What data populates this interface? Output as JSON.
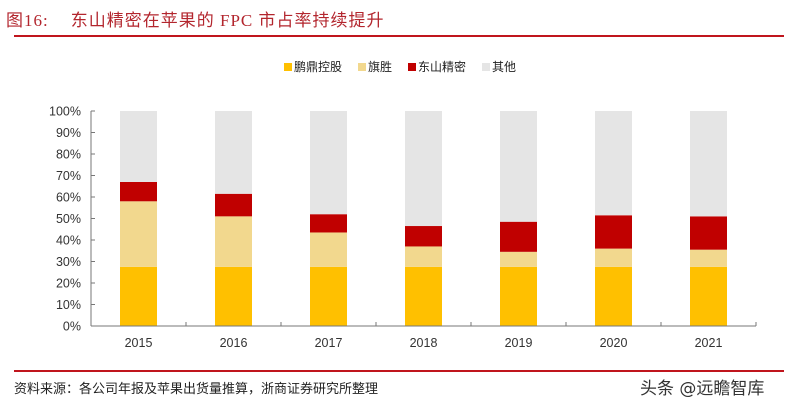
{
  "figure": {
    "label": "图16:",
    "title": "东山精密在苹果的 FPC 市占率持续提升",
    "source": "资料来源：各公司年报及苹果出货量推算，浙商证券研究所整理",
    "watermark": "头条 @远瞻智库"
  },
  "colors": {
    "rule": "#c0151d",
    "title": "#b3262e"
  },
  "chart_data": {
    "type": "bar",
    "stacked": true,
    "title": "东山精密在苹果的 FPC 市占率持续提升",
    "xlabel": "",
    "ylabel": "",
    "ylim": [
      0,
      100
    ],
    "yticks": [
      "0%",
      "10%",
      "20%",
      "30%",
      "40%",
      "50%",
      "60%",
      "70%",
      "80%",
      "90%",
      "100%"
    ],
    "categories": [
      "2015",
      "2016",
      "2017",
      "2018",
      "2019",
      "2020",
      "2021"
    ],
    "legend_position": "top-center",
    "grid": false,
    "series": [
      {
        "name": "鹏鼎控股",
        "color": "#ffc000",
        "values": [
          27.5,
          27.5,
          27.5,
          27.5,
          27.5,
          27.5,
          27.5
        ]
      },
      {
        "name": "旗胜",
        "color": "#f2d88e",
        "values": [
          30.5,
          23.5,
          16,
          9.5,
          7,
          8.5,
          8
        ]
      },
      {
        "name": "东山精密",
        "color": "#c00000",
        "values": [
          9,
          10.5,
          8.5,
          9.5,
          14,
          15.5,
          15.5
        ]
      },
      {
        "name": "其他",
        "color": "#e5e5e5",
        "values": [
          33,
          38.5,
          48,
          53.5,
          51.5,
          48.5,
          49
        ]
      }
    ]
  }
}
